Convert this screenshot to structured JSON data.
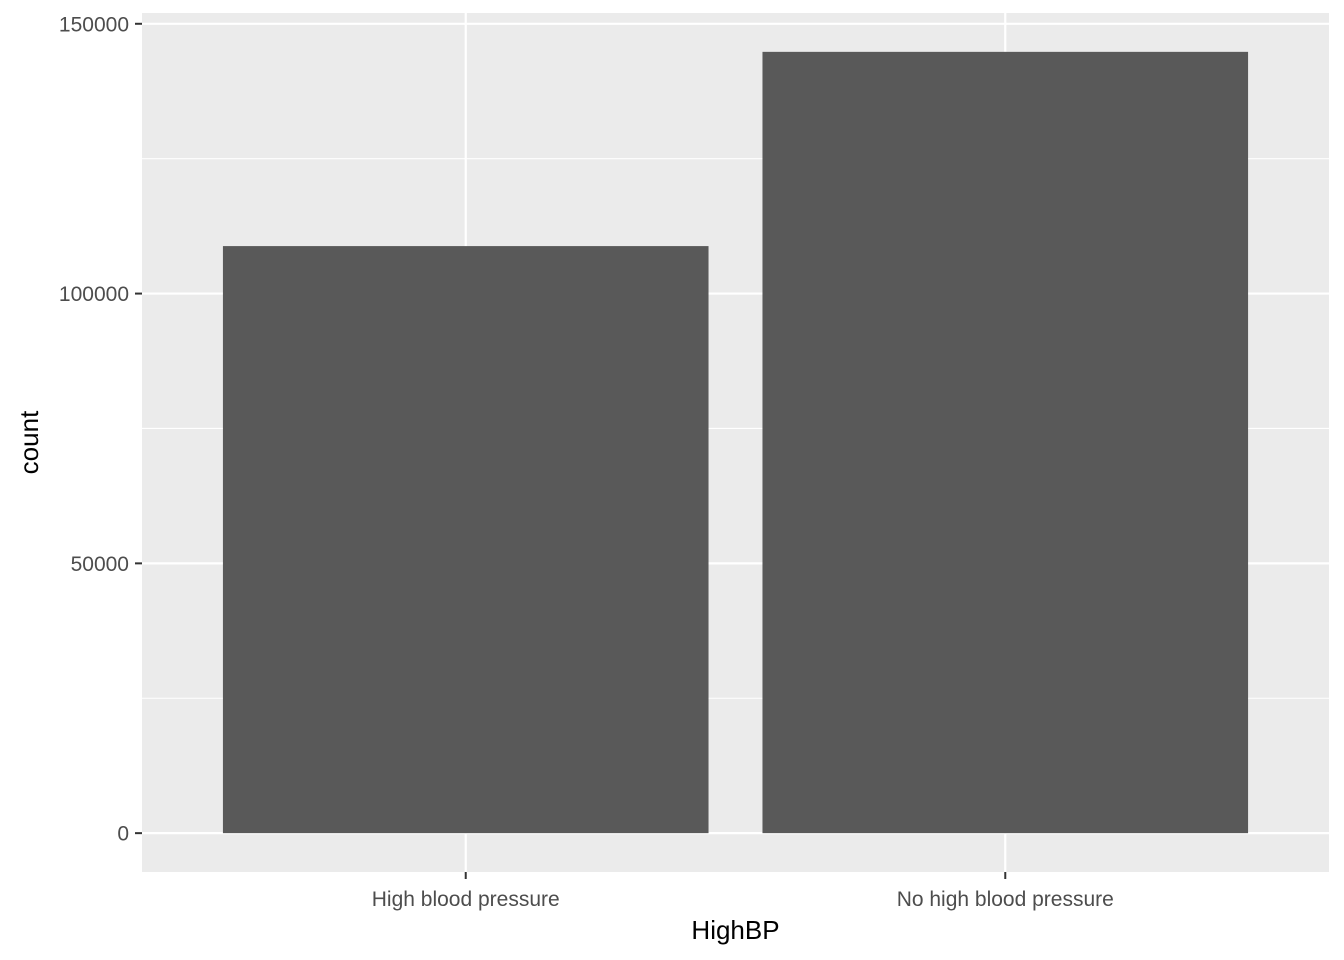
{
  "chart_data": {
    "type": "bar",
    "categories": [
      "High blood pressure",
      "No high blood pressure"
    ],
    "values": [
      108800,
      144800
    ],
    "xlabel": "HighBP",
    "ylabel": "count",
    "ylim": [
      -7200,
      152000
    ],
    "yticks": [
      0,
      50000,
      100000,
      150000
    ],
    "ytick_labels": [
      "0",
      "50000",
      "100000",
      "150000"
    ],
    "grid": true,
    "legend": "none",
    "colors": {
      "bar": "#595959",
      "panel": "#EBEBEB",
      "grid": "#FFFFFF",
      "tick_text": "#4D4D4D",
      "tick_mark": "#333333"
    }
  }
}
